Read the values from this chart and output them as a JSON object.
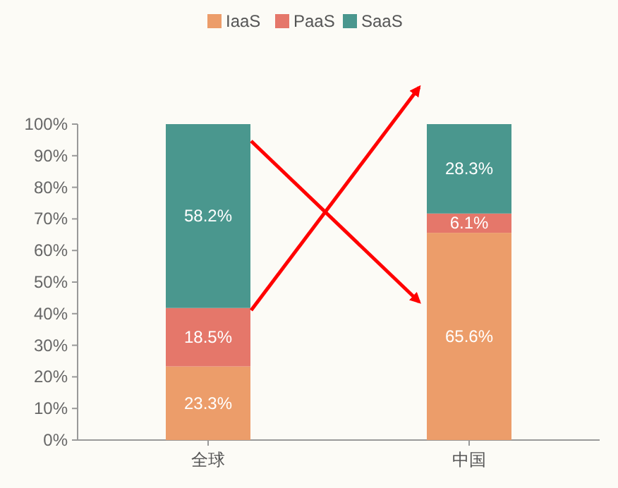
{
  "chart_data": {
    "type": "bar",
    "stacked": true,
    "categories": [
      "全球",
      "中国"
    ],
    "series": [
      {
        "name": "IaaS",
        "color": "#ec9d6a",
        "values": [
          23.3,
          65.6
        ],
        "value_labels": [
          "23.3%",
          "65.6%"
        ]
      },
      {
        "name": "PaaS",
        "color": "#e5776a",
        "values": [
          18.5,
          6.1
        ],
        "value_labels": [
          "18.5%",
          "6.1%"
        ]
      },
      {
        "name": "SaaS",
        "color": "#4a978e",
        "values": [
          58.2,
          28.3
        ],
        "value_labels": [
          "58.2%",
          "28.3%"
        ]
      }
    ],
    "ylim": [
      0,
      100
    ],
    "yticks": [
      {
        "value": 0,
        "label": "0%"
      },
      {
        "value": 10,
        "label": "10%"
      },
      {
        "value": 20,
        "label": "20%"
      },
      {
        "value": 30,
        "label": "30%"
      },
      {
        "value": 40,
        "label": "40%"
      },
      {
        "value": 50,
        "label": "50%"
      },
      {
        "value": 60,
        "label": "60%"
      },
      {
        "value": 70,
        "label": "70%"
      },
      {
        "value": 80,
        "label": "80%"
      },
      {
        "value": 90,
        "label": "90%"
      },
      {
        "value": 100,
        "label": "100%"
      }
    ],
    "legend": "top",
    "grid": false
  }
}
